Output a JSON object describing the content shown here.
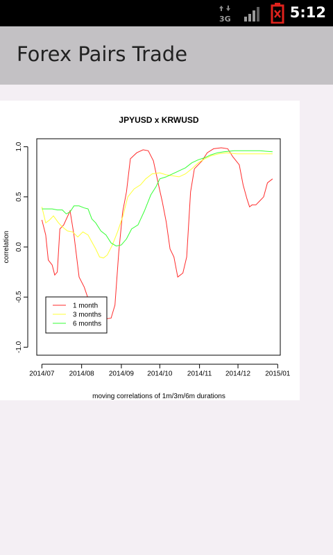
{
  "status_bar": {
    "time": "5:12",
    "network": "3G",
    "icons": [
      "network-3g-icon",
      "signal-icon",
      "battery-alert-icon"
    ],
    "battery_color": "#e0221c"
  },
  "action_bar": {
    "title": "Forex Pairs Trade"
  },
  "chart_data": {
    "type": "line",
    "title": "JPYUSD x KRWUSD",
    "xlabel": "moving correlations of 1m/3m/6m durations",
    "ylabel": "correlation",
    "x_tick_labels": [
      "2014/07",
      "2014/08",
      "2014/09",
      "2014/10",
      "2014/11",
      "2014/12",
      "2015/01"
    ],
    "y_tick_labels": [
      "-1.0",
      "-0.5",
      "0.0",
      "0.5",
      "1.0"
    ],
    "y_ticks": [
      -1.0,
      -0.5,
      0.0,
      0.5,
      1.0
    ],
    "xlim": [
      "2014-06-27",
      "2015-01-03"
    ],
    "ylim": [
      -1.08,
      1.08
    ],
    "legend_position": "bottom-left",
    "grid": false,
    "series": [
      {
        "name": "1 month",
        "color": "#ff2a2a",
        "points": [
          [
            "2014-07-01",
            0.27
          ],
          [
            "2014-07-04",
            0.12
          ],
          [
            "2014-07-06",
            -0.13
          ],
          [
            "2014-07-09",
            -0.18
          ],
          [
            "2014-07-11",
            -0.28
          ],
          [
            "2014-07-13",
            -0.25
          ],
          [
            "2014-07-15",
            0.18
          ],
          [
            "2014-07-18",
            0.22
          ],
          [
            "2014-07-23",
            0.36
          ],
          [
            "2014-07-26",
            0.12
          ],
          [
            "2014-07-30",
            -0.3
          ],
          [
            "2014-08-03",
            -0.4
          ],
          [
            "2014-08-07",
            -0.55
          ],
          [
            "2014-08-11",
            -0.65
          ],
          [
            "2014-08-18",
            -0.72
          ],
          [
            "2014-08-24",
            -0.71
          ],
          [
            "2014-08-27",
            -0.58
          ],
          [
            "2014-08-30",
            -0.05
          ],
          [
            "2014-09-02",
            0.35
          ],
          [
            "2014-09-05",
            0.55
          ],
          [
            "2014-09-08",
            0.88
          ],
          [
            "2014-09-13",
            0.94
          ],
          [
            "2014-09-18",
            0.97
          ],
          [
            "2014-09-22",
            0.96
          ],
          [
            "2014-09-26",
            0.86
          ],
          [
            "2014-09-30",
            0.62
          ],
          [
            "2014-10-03",
            0.45
          ],
          [
            "2014-10-06",
            0.25
          ],
          [
            "2014-10-09",
            -0.02
          ],
          [
            "2014-10-12",
            -0.1
          ],
          [
            "2014-10-15",
            -0.3
          ],
          [
            "2014-10-19",
            -0.26
          ],
          [
            "2014-10-22",
            -0.1
          ],
          [
            "2014-10-25",
            0.55
          ],
          [
            "2014-10-28",
            0.78
          ],
          [
            "2014-11-03",
            0.86
          ],
          [
            "2014-11-07",
            0.94
          ],
          [
            "2014-11-12",
            0.98
          ],
          [
            "2014-11-18",
            0.99
          ],
          [
            "2014-11-23",
            0.98
          ],
          [
            "2014-11-27",
            0.9
          ],
          [
            "2014-12-02",
            0.82
          ],
          [
            "2014-12-05",
            0.62
          ],
          [
            "2014-12-08",
            0.48
          ],
          [
            "2014-12-10",
            0.4
          ],
          [
            "2014-12-12",
            0.42
          ],
          [
            "2014-12-15",
            0.42
          ],
          [
            "2014-12-18",
            0.46
          ],
          [
            "2014-12-21",
            0.5
          ],
          [
            "2014-12-24",
            0.64
          ],
          [
            "2014-12-28",
            0.68
          ]
        ]
      },
      {
        "name": "3 months",
        "color": "#ffff33",
        "points": [
          [
            "2014-07-01",
            0.4
          ],
          [
            "2014-07-04",
            0.24
          ],
          [
            "2014-07-07",
            0.27
          ],
          [
            "2014-07-10",
            0.31
          ],
          [
            "2014-07-14",
            0.24
          ],
          [
            "2014-07-17",
            0.2
          ],
          [
            "2014-07-21",
            0.16
          ],
          [
            "2014-07-25",
            0.15
          ],
          [
            "2014-07-29",
            0.1
          ],
          [
            "2014-08-02",
            0.15
          ],
          [
            "2014-08-06",
            0.12
          ],
          [
            "2014-08-09",
            0.05
          ],
          [
            "2014-08-12",
            -0.02
          ],
          [
            "2014-08-15",
            -0.1
          ],
          [
            "2014-08-18",
            -0.11
          ],
          [
            "2014-08-21",
            -0.08
          ],
          [
            "2014-08-25",
            0.02
          ],
          [
            "2014-08-29",
            0.15
          ],
          [
            "2014-09-02",
            0.3
          ],
          [
            "2014-09-06",
            0.5
          ],
          [
            "2014-09-11",
            0.58
          ],
          [
            "2014-09-16",
            0.62
          ],
          [
            "2014-09-20",
            0.68
          ],
          [
            "2014-09-25",
            0.73
          ],
          [
            "2014-10-01",
            0.74
          ],
          [
            "2014-10-06",
            0.72
          ],
          [
            "2014-10-11",
            0.71
          ],
          [
            "2014-10-16",
            0.7
          ],
          [
            "2014-10-21",
            0.73
          ],
          [
            "2014-10-26",
            0.78
          ],
          [
            "2014-10-31",
            0.84
          ],
          [
            "2014-11-05",
            0.88
          ],
          [
            "2014-11-10",
            0.91
          ],
          [
            "2014-11-16",
            0.93
          ],
          [
            "2014-11-22",
            0.94
          ],
          [
            "2014-11-30",
            0.93
          ],
          [
            "2014-12-08",
            0.93
          ],
          [
            "2014-12-16",
            0.93
          ],
          [
            "2014-12-28",
            0.93
          ]
        ]
      },
      {
        "name": "6 months",
        "color": "#33ff33",
        "points": [
          [
            "2014-07-01",
            0.38
          ],
          [
            "2014-07-05",
            0.38
          ],
          [
            "2014-07-09",
            0.38
          ],
          [
            "2014-07-13",
            0.37
          ],
          [
            "2014-07-17",
            0.37
          ],
          [
            "2014-07-20",
            0.33
          ],
          [
            "2014-07-23",
            0.35
          ],
          [
            "2014-07-26",
            0.41
          ],
          [
            "2014-07-30",
            0.41
          ],
          [
            "2014-08-03",
            0.39
          ],
          [
            "2014-08-06",
            0.38
          ],
          [
            "2014-08-09",
            0.28
          ],
          [
            "2014-08-12",
            0.24
          ],
          [
            "2014-08-16",
            0.16
          ],
          [
            "2014-08-20",
            0.12
          ],
          [
            "2014-08-24",
            0.04
          ],
          [
            "2014-08-28",
            0.01
          ],
          [
            "2014-09-01",
            0.02
          ],
          [
            "2014-09-05",
            0.08
          ],
          [
            "2014-09-09",
            0.18
          ],
          [
            "2014-09-14",
            0.22
          ],
          [
            "2014-09-19",
            0.36
          ],
          [
            "2014-09-24",
            0.52
          ],
          [
            "2014-09-28",
            0.6
          ],
          [
            "2014-10-01",
            0.68
          ],
          [
            "2014-10-06",
            0.7
          ],
          [
            "2014-10-11",
            0.73
          ],
          [
            "2014-10-16",
            0.76
          ],
          [
            "2014-10-21",
            0.79
          ],
          [
            "2014-10-26",
            0.84
          ],
          [
            "2014-10-31",
            0.87
          ],
          [
            "2014-11-05",
            0.89
          ],
          [
            "2014-11-10",
            0.92
          ],
          [
            "2014-11-15",
            0.94
          ],
          [
            "2014-11-20",
            0.95
          ],
          [
            "2014-11-28",
            0.96
          ],
          [
            "2014-12-08",
            0.96
          ],
          [
            "2014-12-18",
            0.96
          ],
          [
            "2014-12-28",
            0.95
          ]
        ]
      }
    ]
  }
}
